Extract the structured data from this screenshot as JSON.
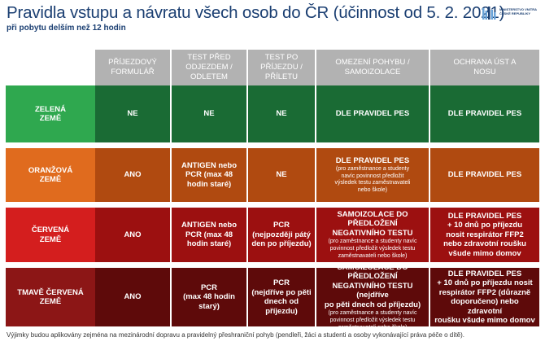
{
  "header": {
    "title": "Pravidla vstupu a návratu všech osob do ČR (účinnost od 5. 2. 2021)",
    "subtitle": "při pobytu delším než 12 hodin",
    "logo_text": "MINISTERSTVO VNITRA\nČESKÉ REPUBLIKY"
  },
  "columns": [
    "PŘÍJEZDOVÝ\nFORMULÁŘ",
    "TEST PŘED\nODJEZDEM /\nODLETEM",
    "TEST PO\nPŘÍJEZDU /\nPŘÍLETU",
    "OMEZENÍ POHYBU /\nSAMOIZOLACE",
    "OCHRANA ÚST A\nNOSU"
  ],
  "rows": [
    {
      "label": "ZELENÁ\nZEMĚ",
      "cells": [
        {
          "main": "NE",
          "note": ""
        },
        {
          "main": "NE",
          "note": ""
        },
        {
          "main": "NE",
          "note": ""
        },
        {
          "main": "DLE PRAVIDEL PES",
          "note": ""
        },
        {
          "main": "DLE PRAVIDEL PES",
          "note": ""
        }
      ]
    },
    {
      "label": "ORANŽOVÁ\nZEMĚ",
      "cells": [
        {
          "main": "ANO",
          "note": ""
        },
        {
          "main": "ANTIGEN nebo\nPCR (max 48\nhodin staré)",
          "note": ""
        },
        {
          "main": "NE",
          "note": ""
        },
        {
          "main": "DLE PRAVIDEL PES",
          "note": "(pro zaměstnance a studenty\nnavíc povinnost předložit\nvýsledek testu zaměstnavateli\nnebo škole)"
        },
        {
          "main": "DLE PRAVIDEL PES",
          "note": ""
        }
      ]
    },
    {
      "label": "ČERVENÁ\nZEMĚ",
      "cells": [
        {
          "main": "ANO",
          "note": ""
        },
        {
          "main": "ANTIGEN nebo\nPCR (max 48\nhodin staré)",
          "note": ""
        },
        {
          "main": "PCR\n(nejpozději pátý\nden po příjezdu)",
          "note": ""
        },
        {
          "main": "SAMOIZOLACE DO PŘEDLOŽENÍ\nNEGATIVNÍHO TESTU",
          "note": "(pro zaměstnance a studenty navíc\npovinnost předložit výsledek testu\nzaměstnavateli nebo škole)"
        },
        {
          "main": "DLE PRAVIDEL PES\n+ 10 dnů po příjezdu\nnosit respirátor FFP2\nnebo zdravotní roušku\nvšude mimo domov",
          "note": ""
        }
      ]
    },
    {
      "label": "TMAVĚ ČERVENÁ\nZEMĚ",
      "cells": [
        {
          "main": "ANO",
          "note": ""
        },
        {
          "main": "PCR\n(max 48 hodin\nstarý)",
          "note": ""
        },
        {
          "main": "PCR\n(nejdříve po pěti\ndnech od příjezdu)",
          "note": ""
        },
        {
          "main": "SAMOIZOLACE DO PŘEDLOŽENÍ\nNEGATIVNÍHO TESTU (nejdříve\npo pěti dnech od příjezdu)",
          "note": "(pro zaměstnance a studenty navíc\npovinnost předložit výsledek testu\nzaměstnavateli nebo škole)"
        },
        {
          "main": "DLE PRAVIDEL PES\n+ 10 dnů po příjezdu nosit\nrespirátor FFP2 (důrazně\ndoporučeno) nebo zdravotní\nroušku všude mimo domov",
          "note": ""
        }
      ]
    }
  ],
  "colors": {
    "header": "#b2b2b2",
    "green_label": "#2fa84f",
    "green_cell": "#1a6b34",
    "orange_label": "#e06b1e",
    "orange_cell": "#b04a10",
    "red_label": "#d41e1e",
    "red_cell": "#9c1010",
    "darkred_label": "#8c1616",
    "darkred_cell": "#5e0a0a"
  },
  "footnote": "Výjimky budou aplikovány zejména na mezinárodní dopravu a pravidelný přeshraniční pohyb (pendleři, žáci a studenti a osoby vykonávající práva péče o dítě)."
}
